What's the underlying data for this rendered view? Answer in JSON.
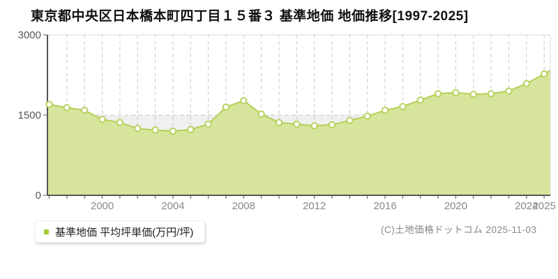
{
  "page": {
    "title": "東京都中央区日本橋本町四丁目１５番３ 基準地価 地価推移[1997-2025]",
    "legend_label": "基準地価 平均坪単価(万円/坪)",
    "footer": "(C)土地価格ドットコム 2025-11-03"
  },
  "colors": {
    "area_fill": "#d6e59b",
    "line": "#b3cf55",
    "marker_fill": "#fdfef6",
    "marker_stroke": "#b3cf55",
    "grid": "#c9c9c9",
    "band": "#f0f0f0",
    "axis_dark": "#555555",
    "border_light": "#d9d9d9",
    "x_label": "#888888",
    "y_label": "#555555",
    "legend_bullet": "#a3cc33",
    "title_text": "#111111",
    "footer_text": "#888888"
  },
  "chart_data": {
    "type": "area",
    "title": "東京都中央区日本橋本町四丁目１５番３ 基準地価 地価推移[1997-2025]",
    "xlabel": "",
    "ylabel": "万円/坪",
    "ylim": [
      0,
      3000
    ],
    "yticks": [
      0,
      1500,
      3000
    ],
    "xticks": [
      2000,
      2004,
      2008,
      2012,
      2016,
      2020,
      2024,
      2025
    ],
    "grid": "vertical dashed per year, horizontal dashed at 1500",
    "legend_position": "bottom-left",
    "x": [
      1997,
      1998,
      1999,
      2000,
      2001,
      2002,
      2003,
      2004,
      2005,
      2006,
      2007,
      2008,
      2009,
      2010,
      2011,
      2012,
      2013,
      2014,
      2015,
      2016,
      2017,
      2018,
      2019,
      2020,
      2021,
      2022,
      2023,
      2024,
      2025
    ],
    "series": [
      {
        "name": "基準地価 平均坪単価(万円/坪)",
        "values": [
          1700,
          1640,
          1590,
          1420,
          1360,
          1250,
          1220,
          1200,
          1230,
          1330,
          1650,
          1770,
          1520,
          1360,
          1330,
          1300,
          1320,
          1400,
          1480,
          1590,
          1660,
          1780,
          1900,
          1920,
          1890,
          1900,
          1950,
          2090,
          2270
        ]
      }
    ]
  }
}
